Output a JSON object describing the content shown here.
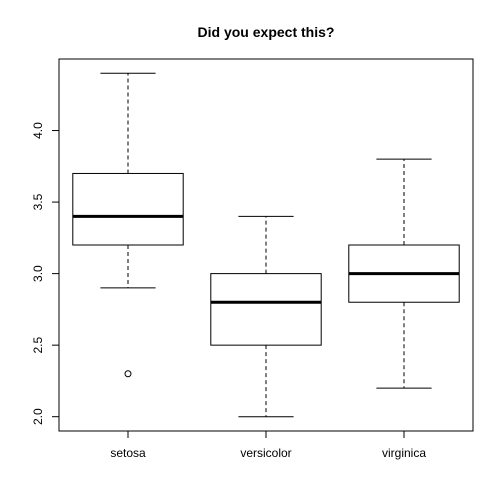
{
  "chart_data": {
    "type": "boxplot",
    "title": "Did you expect this?",
    "xlabel": "",
    "ylabel": "",
    "ylim": [
      1.9,
      4.5
    ],
    "y_ticks": [
      2.0,
      2.5,
      3.0,
      3.5,
      4.0
    ],
    "y_tick_labels": [
      "2.0",
      "2.5",
      "3.0",
      "3.5",
      "4.0"
    ],
    "categories": [
      "setosa",
      "versicolor",
      "virginica"
    ],
    "boxes": [
      {
        "category": "setosa",
        "whisker_low": 2.9,
        "q1": 3.2,
        "median": 3.4,
        "q3": 3.7,
        "whisker_high": 4.4,
        "outliers": [
          2.3
        ]
      },
      {
        "category": "versicolor",
        "whisker_low": 2.0,
        "q1": 2.5,
        "median": 2.8,
        "q3": 3.0,
        "whisker_high": 3.4,
        "outliers": []
      },
      {
        "category": "virginica",
        "whisker_low": 2.2,
        "q1": 2.8,
        "median": 3.0,
        "q3": 3.2,
        "whisker_high": 3.8,
        "outliers": []
      }
    ],
    "grid": false,
    "legend": "none"
  }
}
